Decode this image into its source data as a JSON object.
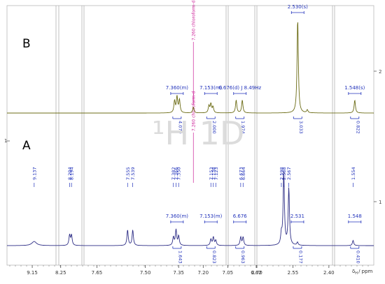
{
  "chart_data": {
    "type": "line",
    "title": "",
    "xlabel": "δ_H / ppm",
    "xlabel_main": "δ",
    "xlabel_sub": "H",
    "xlabel_unit": "/ ppm",
    "x_axis_reversed": true,
    "axis_breaks": [
      8.25,
      7.65,
      7.25,
      6.92,
      2.7,
      2.4
    ],
    "x_tick_labels": [
      "9.15",
      "8.25",
      "7.65",
      "7.50",
      "7.35",
      "7.20",
      "7.05",
      "6.62",
      "2.70",
      "2.55",
      "2.40"
    ],
    "right_axis": {
      "tick_labels": [
        "2",
        "1"
      ]
    },
    "left_marks": [
      "1"
    ],
    "nucleus_label": "¹H 1D",
    "colors": {
      "B": "#6b6b14",
      "A": "#2e2e86",
      "label": "#2233bb",
      "solvent": "#cc2299",
      "frame": "#9a9a9a"
    },
    "series": [
      {
        "name": "B",
        "color": "#6b6b14",
        "peak_labels": [],
        "multiplets": [
          {
            "label": "7.360(m)",
            "integral": "4.070",
            "shift": 7.36
          },
          {
            "label": "7.153(m)",
            "integral": "2.000",
            "shift": 7.153
          },
          {
            "label": "6.676(d) J 8.49Hz",
            "integral": "1.974",
            "shift": 6.676
          },
          {
            "label": "2.530(s)",
            "integral": "3.033",
            "shift": 2.53
          },
          {
            "label": "1.548(s)",
            "integral": "0.822",
            "shift": 1.548
          }
        ],
        "solvent_label": "7.260 chloroform-d",
        "solvent_shift": 7.26,
        "peaks": [
          {
            "shift": 7.375,
            "height": 0.12
          },
          {
            "shift": 7.36,
            "height": 0.16
          },
          {
            "shift": 7.345,
            "height": 0.13
          },
          {
            "shift": 7.26,
            "height": 0.06
          },
          {
            "shift": 7.165,
            "height": 0.07
          },
          {
            "shift": 7.153,
            "height": 0.09
          },
          {
            "shift": 7.14,
            "height": 0.06
          },
          {
            "shift": 6.69,
            "height": 0.13
          },
          {
            "shift": 6.667,
            "height": 0.13
          },
          {
            "shift": 2.53,
            "height": 0.95
          },
          {
            "shift": 2.49,
            "height": 0.03
          },
          {
            "shift": 1.548,
            "height": 0.13
          }
        ]
      },
      {
        "name": "A",
        "color": "#2e2e86",
        "peak_labels": [
          "9.137",
          "8.204",
          "8.194",
          "7.555",
          "7.539",
          "7.382",
          "7.366",
          "7.350",
          "7.153",
          "7.138",
          "7.123",
          "6.673",
          "6.664",
          "2.598",
          "2.588",
          "2.567",
          "1.554"
        ],
        "multiplets": [
          {
            "label": "7.360(m)",
            "integral": "1.643",
            "shift": 7.36
          },
          {
            "label": "7.153(m)",
            "integral": "0.823",
            "shift": 7.153
          },
          {
            "label": "6.676",
            "integral": "0.963",
            "shift": 6.676
          },
          {
            "label": "2.531",
            "integral": "0.177",
            "shift": 2.531
          },
          {
            "label": "1.548",
            "integral": "0.410",
            "shift": 1.548
          }
        ],
        "solvent_label": "7.260 chloroform-d",
        "solvent_shift": 7.26,
        "peaks": [
          {
            "shift": 9.137,
            "height": 0.04
          },
          {
            "shift": 8.204,
            "height": 0.1
          },
          {
            "shift": 8.194,
            "height": 0.1
          },
          {
            "shift": 7.555,
            "height": 0.15
          },
          {
            "shift": 7.539,
            "height": 0.15
          },
          {
            "shift": 7.382,
            "height": 0.08
          },
          {
            "shift": 7.366,
            "height": 0.15
          },
          {
            "shift": 7.35,
            "height": 0.09
          },
          {
            "shift": 7.153,
            "height": 0.06
          },
          {
            "shift": 7.138,
            "height": 0.08
          },
          {
            "shift": 7.123,
            "height": 0.05
          },
          {
            "shift": 6.673,
            "height": 0.08
          },
          {
            "shift": 6.664,
            "height": 0.08
          },
          {
            "shift": 2.598,
            "height": 0.1
          },
          {
            "shift": 2.588,
            "height": 0.7
          },
          {
            "shift": 2.567,
            "height": 0.55
          },
          {
            "shift": 2.531,
            "height": 0.03
          },
          {
            "shift": 1.554,
            "height": 0.05
          }
        ]
      }
    ]
  }
}
